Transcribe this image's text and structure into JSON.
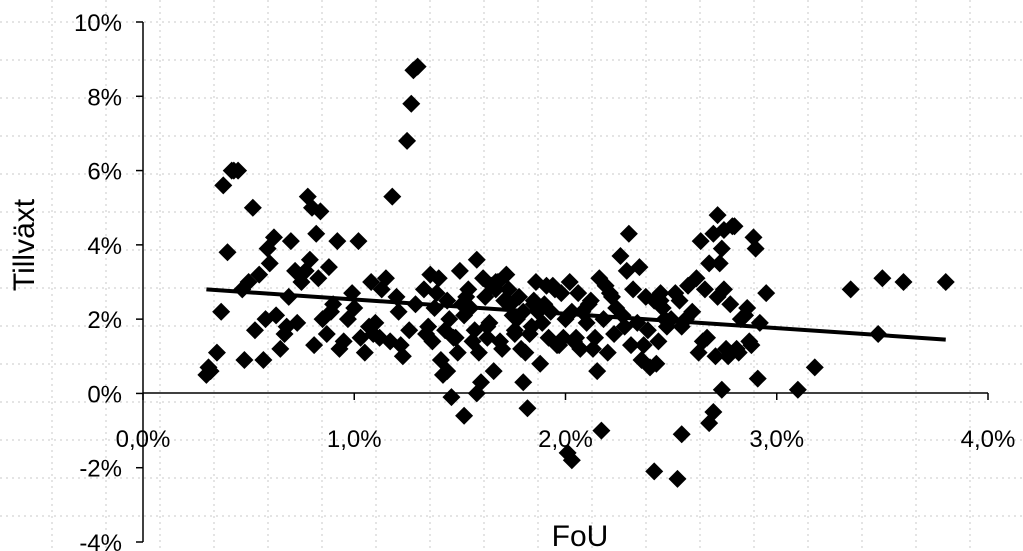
{
  "chart_data": {
    "type": "scatter",
    "title": "",
    "xlabel": "FoU",
    "ylabel": "Tillväxt",
    "xlim": [
      0.0,
      4.0
    ],
    "ylim": [
      -4,
      10
    ],
    "x_tick_labels": [
      "0,0%",
      "1,0%",
      "2,0%",
      "3,0%",
      "4,0%"
    ],
    "x_tick_values": [
      0.0,
      1.0,
      2.0,
      3.0,
      4.0
    ],
    "y_tick_labels": [
      "10%",
      "8%",
      "6%",
      "4%",
      "2%",
      "0%",
      "-2%",
      "-4%"
    ],
    "y_tick_values": [
      10,
      8,
      6,
      4,
      2,
      0,
      -2,
      -4
    ],
    "grid": "dotted",
    "marker": "diamond",
    "color": "#000000",
    "trendline": {
      "x": [
        0.3,
        3.8
      ],
      "y": [
        2.8,
        1.45
      ]
    },
    "series": [
      {
        "x": [
          0.3,
          0.32,
          0.35,
          0.37,
          0.4,
          0.42,
          0.45,
          0.48,
          0.5,
          0.52,
          0.55,
          0.58,
          0.6,
          0.62,
          0.65,
          0.68,
          0.7,
          0.72,
          0.75,
          0.78,
          0.8,
          0.82,
          0.85,
          0.88,
          0.9,
          0.92,
          0.95,
          1.0,
          1.02,
          1.05,
          1.08,
          1.1,
          1.12,
          1.15,
          1.18,
          1.2,
          1.22,
          1.25,
          1.27,
          1.28,
          1.3,
          0.38,
          0.43,
          0.53,
          0.57,
          0.63,
          0.67,
          0.73,
          0.79,
          0.81,
          0.83,
          0.87,
          0.93,
          0.97,
          1.03,
          1.07,
          1.13,
          1.17,
          1.21,
          1.23,
          1.26,
          1.29,
          0.31,
          0.47,
          0.59,
          0.69,
          0.77,
          0.84,
          0.89,
          0.99,
          1.09,
          1.33,
          1.35,
          1.37,
          1.4,
          1.42,
          1.44,
          1.46,
          1.48,
          1.5,
          1.52,
          1.54,
          1.56,
          1.58,
          1.6,
          1.62,
          1.64,
          1.66,
          1.68,
          1.7,
          1.72,
          1.74,
          1.76,
          1.78,
          1.8,
          1.82,
          1.84,
          1.86,
          1.88,
          1.9,
          1.92,
          1.94,
          1.96,
          1.98,
          2.0,
          1.34,
          1.38,
          1.41,
          1.45,
          1.49,
          1.53,
          1.57,
          1.61,
          1.65,
          1.69,
          1.73,
          1.77,
          1.81,
          1.85,
          1.89,
          1.93,
          1.97,
          1.36,
          1.43,
          1.51,
          1.59,
          1.67,
          1.75,
          1.83,
          1.91,
          1.99,
          1.39,
          1.47,
          1.55,
          1.63,
          1.71,
          1.79,
          1.87,
          1.95,
          1.44,
          1.52,
          1.58,
          1.63,
          1.67,
          1.76,
          1.8,
          1.85,
          2.02,
          2.04,
          2.06,
          2.08,
          2.1,
          2.12,
          2.14,
          2.16,
          2.18,
          2.2,
          2.22,
          2.24,
          2.26,
          2.28,
          2.3,
          2.32,
          2.34,
          2.36,
          2.38,
          2.4,
          2.42,
          2.44,
          2.46,
          2.48,
          2.5,
          2.03,
          2.07,
          2.11,
          2.15,
          2.19,
          2.23,
          2.27,
          2.31,
          2.35,
          2.39,
          2.43,
          2.47,
          2.05,
          2.13,
          2.21,
          2.29,
          2.37,
          2.45,
          2.01,
          2.03,
          2.17,
          2.42,
          2.45,
          2.53,
          2.55,
          2.52,
          2.55,
          2.58,
          2.6,
          2.62,
          2.65,
          2.68,
          2.7,
          2.72,
          2.74,
          2.76,
          2.78,
          2.8,
          2.82,
          2.85,
          2.88,
          2.9,
          2.92,
          2.95,
          2.54,
          2.57,
          2.63,
          2.67,
          2.71,
          2.75,
          2.79,
          2.83,
          2.87,
          2.91,
          2.64,
          2.73,
          2.81,
          2.89,
          2.68,
          2.74,
          2.77,
          2.86,
          2.66,
          2.7,
          2.72,
          2.75,
          3.1,
          3.18,
          3.35,
          3.48,
          3.5,
          3.6,
          3.8
        ],
        "y": [
          0.5,
          0.6,
          1.1,
          2.2,
          3.8,
          6.0,
          6.0,
          0.9,
          3.0,
          5.0,
          3.2,
          2.0,
          3.5,
          4.2,
          1.2,
          1.8,
          4.1,
          3.3,
          3.0,
          5.3,
          5.0,
          4.3,
          2.0,
          3.4,
          2.4,
          4.1,
          1.4,
          2.3,
          4.1,
          1.1,
          3.0,
          1.9,
          1.5,
          3.1,
          5.3,
          2.6,
          1.3,
          6.8,
          7.8,
          8.7,
          8.8,
          5.6,
          6.0,
          1.7,
          0.9,
          2.1,
          1.6,
          1.9,
          3.6,
          1.3,
          3.1,
          1.6,
          1.2,
          2.0,
          1.5,
          1.8,
          2.8,
          1.4,
          2.2,
          1.0,
          1.7,
          2.4,
          0.7,
          2.8,
          3.9,
          2.6,
          3.3,
          4.9,
          2.2,
          2.7,
          1.6,
          2.8,
          1.8,
          1.4,
          3.1,
          0.5,
          2.5,
          -0.1,
          1.5,
          3.3,
          -0.6,
          2.8,
          1.4,
          3.6,
          0.3,
          2.6,
          1.9,
          0.6,
          3.0,
          1.2,
          3.2,
          2.4,
          1.6,
          2.6,
          2.2,
          -0.4,
          1.8,
          3.0,
          0.8,
          2.4,
          1.5,
          2.9,
          1.3,
          2.7,
          2.0,
          1.6,
          2.3,
          0.9,
          2.0,
          1.1,
          2.6,
          1.7,
          3.1,
          2.9,
          1.4,
          2.8,
          2.0,
          1.1,
          2.5,
          1.9,
          2.2,
          1.3,
          3.2,
          1.7,
          2.4,
          1.1,
          3.0,
          2.1,
          1.6,
          2.9,
          1.5,
          2.7,
          1.5,
          2.3,
          1.8,
          2.5,
          1.2,
          2.2,
          2.8,
          0.6,
          2.1,
          0.0,
          1.5,
          2.8,
          1.7,
          0.3,
          2.4,
          3.0,
          1.4,
          2.7,
          2.2,
          1.9,
          2.5,
          1.5,
          3.1,
          2.0,
          1.1,
          2.6,
          2.3,
          3.7,
          1.8,
          4.3,
          2.8,
          1.9,
          0.9,
          2.6,
          0.7,
          2.5,
          1.4,
          2.3,
          1.8,
          2.0,
          2.2,
          1.2,
          2.4,
          0.6,
          2.9,
          1.6,
          2.1,
          1.3,
          3.4,
          1.7,
          0.8,
          2.0,
          1.5,
          1.2,
          2.7,
          3.3,
          1.3,
          2.5,
          -1.6,
          -1.8,
          -1.0,
          -2.1,
          2.7,
          -2.3,
          -1.1,
          2.7,
          1.8,
          2.9,
          2.2,
          3.1,
          1.4,
          3.5,
          4.3,
          2.6,
          3.9,
          1.2,
          2.4,
          4.5,
          1.1,
          2.1,
          1.3,
          3.9,
          1.9,
          2.7,
          2.5,
          2.0,
          1.1,
          1.5,
          1.0,
          2.8,
          4.5,
          2.0,
          1.4,
          0.4,
          4.1,
          3.5,
          1.2,
          4.2,
          -0.8,
          0.1,
          1.0,
          2.3,
          2.8,
          -0.5,
          4.8,
          4.4,
          0.1,
          0.7,
          2.8,
          1.6,
          3.1,
          3.0,
          3.0
        ]
      }
    ]
  }
}
